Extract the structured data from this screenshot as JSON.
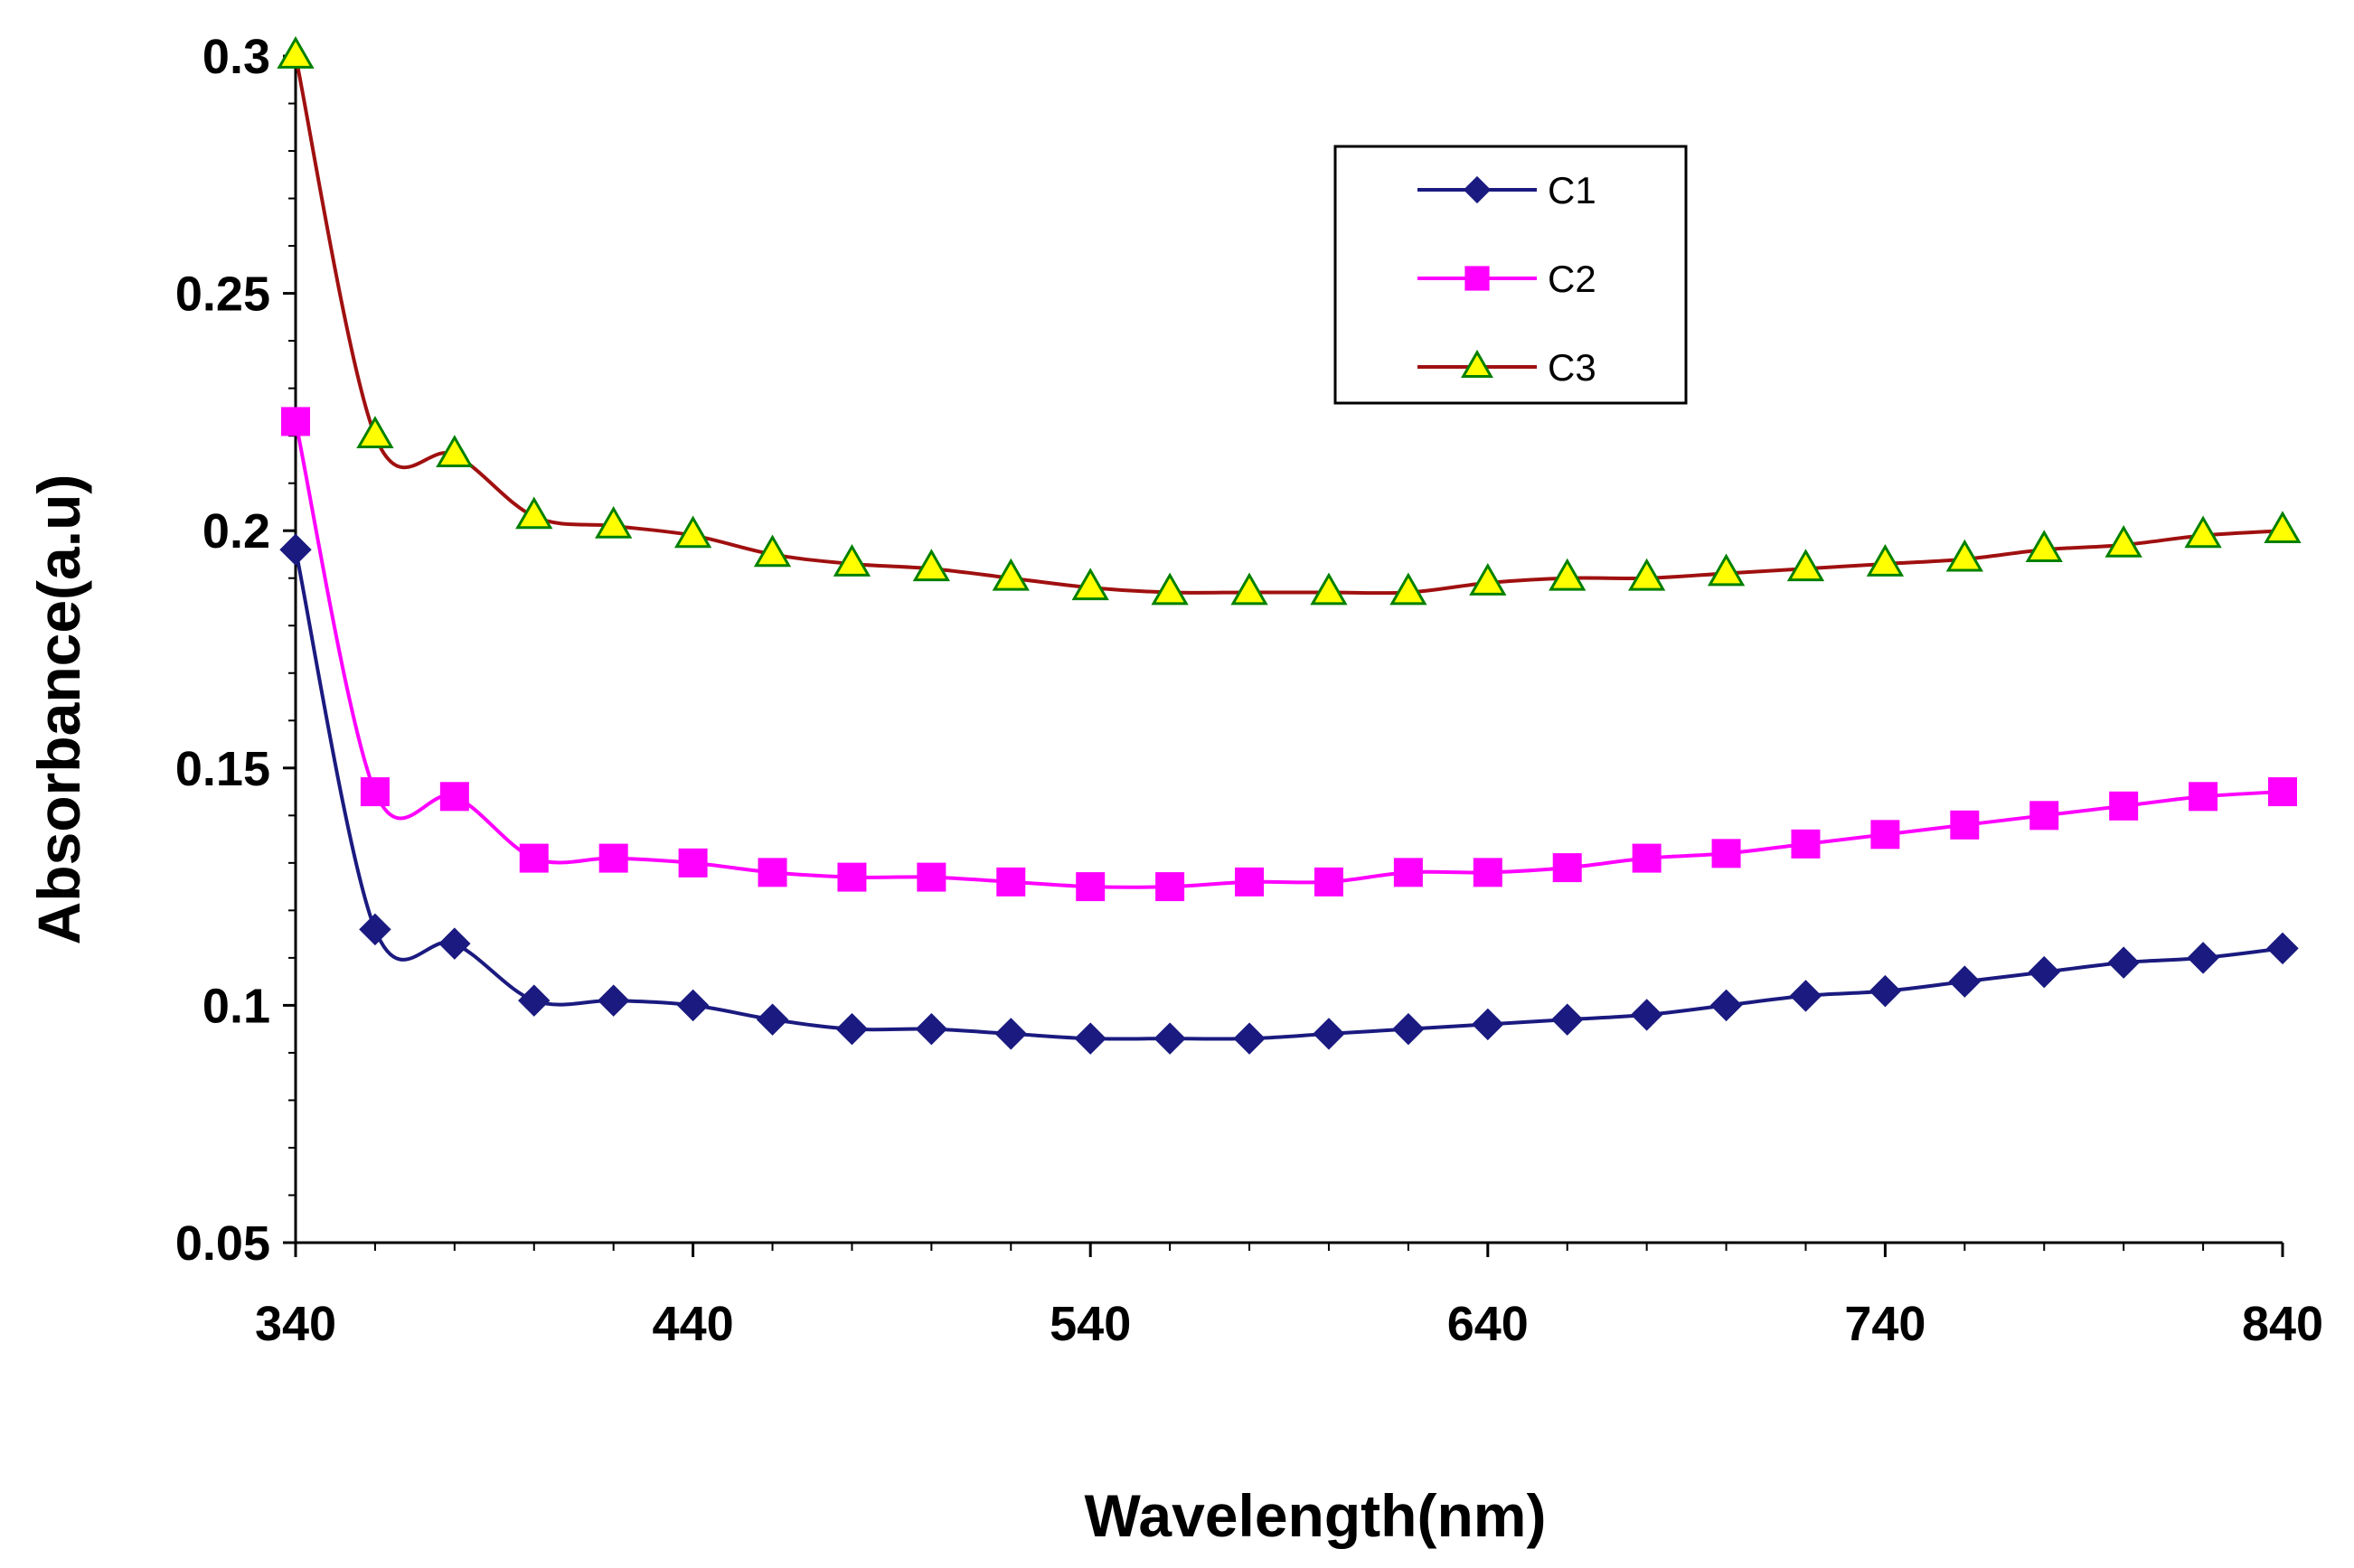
{
  "chart_data": {
    "type": "line",
    "xlabel": "Wavelength(nm)",
    "ylabel": "Absorbance(a.u)",
    "xlim": [
      340,
      840
    ],
    "ylim": [
      0.05,
      0.3
    ],
    "xticks": [
      "340",
      "440",
      "540",
      "640",
      "740",
      "840"
    ],
    "yticks": [
      "0.05",
      "0.1",
      "0.15",
      "0.2",
      "0.25",
      "0.3"
    ],
    "legend_position": "top-center",
    "grid": false,
    "x": [
      340,
      360,
      380,
      400,
      420,
      440,
      460,
      480,
      500,
      520,
      540,
      560,
      580,
      600,
      620,
      640,
      660,
      680,
      700,
      720,
      740,
      760,
      780,
      800,
      820,
      840
    ],
    "series": [
      {
        "name": "C1",
        "color": "#1a1a80",
        "marker": "diamond",
        "values": [
          0.196,
          0.116,
          0.113,
          0.101,
          0.101,
          0.1,
          0.097,
          0.095,
          0.095,
          0.094,
          0.093,
          0.093,
          0.093,
          0.094,
          0.095,
          0.096,
          0.097,
          0.098,
          0.1,
          0.102,
          0.103,
          0.105,
          0.107,
          0.109,
          0.11,
          0.112
        ]
      },
      {
        "name": "C2",
        "color": "#ff00ff",
        "marker": "square",
        "values": [
          0.223,
          0.145,
          0.144,
          0.131,
          0.131,
          0.13,
          0.128,
          0.127,
          0.127,
          0.126,
          0.125,
          0.125,
          0.126,
          0.126,
          0.128,
          0.128,
          0.129,
          0.131,
          0.132,
          0.134,
          0.136,
          0.138,
          0.14,
          0.142,
          0.144,
          0.145
        ]
      },
      {
        "name": "C3",
        "color": "#a01010",
        "marker": "triangle",
        "marker_fill": "#ffff00",
        "marker_stroke": "#008000",
        "values": [
          0.3,
          0.22,
          0.216,
          0.203,
          0.201,
          0.199,
          0.195,
          0.193,
          0.192,
          0.19,
          0.188,
          0.187,
          0.187,
          0.187,
          0.187,
          0.189,
          0.19,
          0.19,
          0.191,
          0.192,
          0.193,
          0.194,
          0.196,
          0.197,
          0.199,
          0.2
        ]
      }
    ]
  }
}
